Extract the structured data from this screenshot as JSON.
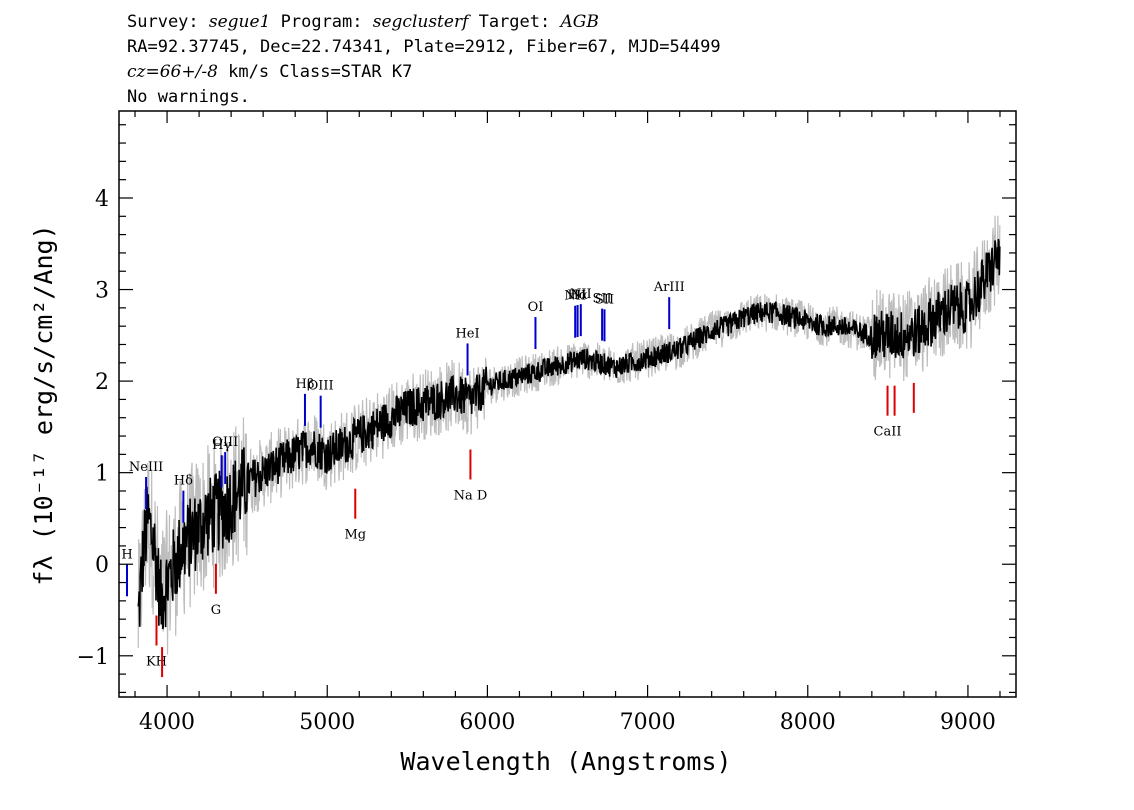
{
  "header": {
    "line1": {
      "survey_label": "Survey: ",
      "survey": "segue1",
      "program_label": " Program: ",
      "program": "segclusterf",
      "target_label": " Target: ",
      "target": "AGB"
    },
    "line2": "RA=92.37745, Dec=22.74341, Plate=2912, Fiber=67, MJD=54499",
    "line3": {
      "cz": "cz=66+/-8",
      "rest": " km/s Class=STAR K7"
    },
    "line4": "No warnings."
  },
  "chart_data": {
    "type": "line",
    "xlabel": "Wavelength (Angstroms)",
    "ylabel": "fλ (10⁻¹⁷ erg/s/cm²/Ang)",
    "xlim": [
      3700,
      9300
    ],
    "ylim": [
      -1.45,
      4.95
    ],
    "x_ticks": [
      4000,
      5000,
      6000,
      7000,
      8000,
      9000
    ],
    "y_ticks": [
      -1,
      0,
      1,
      2,
      3,
      4
    ],
    "grid": false,
    "legend": "none",
    "colors": {
      "flux": "#000000",
      "error": "#bdbdbd",
      "emission": "#0000cc",
      "absorption": "#dd0000"
    },
    "series": [
      {
        "role": "flux",
        "x": [
          3820,
          3850,
          3880,
          3920,
          3960,
          4000,
          4050,
          4100,
          4150,
          4200,
          4250,
          4300,
          4350,
          4400,
          4450,
          4500,
          4600,
          4700,
          4800,
          4900,
          5000,
          5100,
          5200,
          5300,
          5400,
          5500,
          5600,
          5700,
          5800,
          5900,
          6000,
          6100,
          6200,
          6300,
          6400,
          6500,
          6600,
          6700,
          6800,
          6900,
          7000,
          7100,
          7200,
          7300,
          7400,
          7500,
          7600,
          7700,
          7800,
          7900,
          8000,
          8100,
          8200,
          8300,
          8400,
          8500,
          8600,
          8700,
          8800,
          8900,
          9000,
          9100,
          9200
        ],
        "y": [
          -0.6,
          0.1,
          0.5,
          0.2,
          -0.4,
          -0.2,
          0.0,
          0.2,
          0.3,
          0.4,
          0.5,
          0.55,
          0.6,
          0.7,
          0.8,
          0.9,
          1.0,
          1.1,
          1.2,
          1.3,
          1.2,
          1.3,
          1.4,
          1.5,
          1.6,
          1.7,
          1.75,
          1.8,
          1.85,
          1.8,
          1.95,
          2.0,
          2.05,
          2.1,
          2.15,
          2.2,
          2.25,
          2.2,
          2.15,
          2.2,
          2.25,
          2.3,
          2.35,
          2.45,
          2.55,
          2.6,
          2.7,
          2.75,
          2.75,
          2.7,
          2.65,
          2.6,
          2.6,
          2.55,
          2.5,
          2.5,
          2.5,
          2.55,
          2.7,
          2.8,
          2.8,
          3.1,
          3.4
        ]
      }
    ],
    "emission_lines": [
      {
        "label": "NeIII",
        "x": 3869
      },
      {
        "label": "Hδ",
        "x": 4102
      },
      {
        "label": "Hγ",
        "x": 4341
      },
      {
        "label": "OIII",
        "x": 4363
      },
      {
        "label": "Hβ",
        "x": 4861
      },
      {
        "label": "OIII",
        "x": 4959
      },
      {
        "label": "HeI",
        "x": 5876
      },
      {
        "label": "OI",
        "x": 6300
      },
      {
        "label": "NII",
        "x": 6548
      },
      {
        "label": "Hα",
        "x": 6563
      },
      {
        "label": "NII",
        "x": 6583
      },
      {
        "label": "SII",
        "x": 6716
      },
      {
        "label": "SII",
        "x": 6731
      },
      {
        "label": "ArIII",
        "x": 7135
      },
      {
        "label": "H",
        "x": 3750
      }
    ],
    "absorption_lines": [
      {
        "label": "KH",
        "x": 3934
      },
      {
        "label": "KH",
        "x": 3969
      },
      {
        "label": "G",
        "x": 4305
      },
      {
        "label": "Mg",
        "x": 5175
      },
      {
        "label": "Na D",
        "x": 5894
      },
      {
        "label": "CaII",
        "x": 8498
      },
      {
        "label": "CaII",
        "x": 8542
      },
      {
        "label": "CaII",
        "x": 8662
      }
    ]
  }
}
